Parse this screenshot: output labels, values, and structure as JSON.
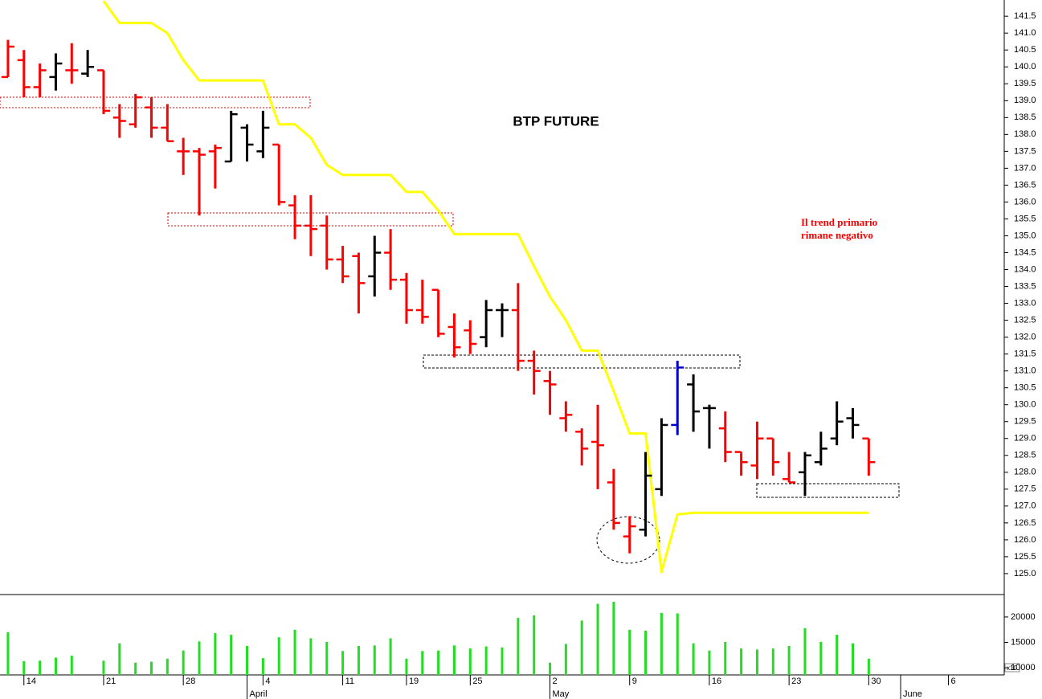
{
  "chart_data": [
    {
      "type": "ohlc",
      "title": "BTP  FUTURE",
      "annotation": [
        "Il trend primario",
        "rimane negativo"
      ],
      "annotation_color": "#ff0000",
      "xlim": [
        -0.5,
        62.5
      ],
      "xticks": [
        {
          "value": 1,
          "label": "14"
        },
        {
          "value": 6,
          "label": "21"
        },
        {
          "value": 11,
          "label": "28"
        },
        {
          "value": 16,
          "label": "4"
        },
        {
          "value": 21,
          "label": "11"
        },
        {
          "value": 25,
          "label": "19"
        },
        {
          "value": 29,
          "label": "25"
        },
        {
          "value": 34,
          "label": "2"
        },
        {
          "value": 39,
          "label": "9"
        },
        {
          "value": 44,
          "label": "16"
        },
        {
          "value": 49,
          "label": "23"
        },
        {
          "value": 54,
          "label": "30"
        },
        {
          "value": 59,
          "label": "6"
        }
      ],
      "month_ticks": [
        {
          "value": 15,
          "label": "April"
        },
        {
          "value": 34,
          "label": "May"
        },
        {
          "value": 56,
          "label": "June"
        }
      ],
      "ylim": [
        124.38,
        141.98
      ],
      "yticks": [
        {
          "value": 125,
          "label": "125.0"
        },
        125.5,
        {
          "value": 126,
          "label": "126.0"
        },
        126.5,
        {
          "value": 127,
          "label": "127.0"
        },
        127.5,
        {
          "value": 128,
          "label": "128.0"
        },
        128.5,
        {
          "value": 129,
          "label": "129.0"
        },
        129.5,
        {
          "value": 130,
          "label": "130.0"
        },
        130.5,
        {
          "value": 131,
          "label": "131.0"
        },
        131.5,
        {
          "value": 132,
          "label": "132.0"
        },
        132.5,
        {
          "value": 133,
          "label": "133.0"
        },
        133.5,
        {
          "value": 134,
          "label": "134.0"
        },
        134.5,
        {
          "value": 135,
          "label": "135.0"
        },
        135.5,
        {
          "value": 136,
          "label": "136.0"
        },
        136.5,
        {
          "value": 137,
          "label": "137.0"
        },
        137.5,
        {
          "value": 138,
          "label": "138.0"
        },
        138.5,
        {
          "value": 139,
          "label": "139.0"
        },
        139.5,
        {
          "value": 140,
          "label": "140.0"
        },
        140.5,
        {
          "value": 141,
          "label": "141.0"
        },
        141.5
      ],
      "open": [
        139.7,
        140.2,
        139.4,
        139.7,
        139.9,
        139.8,
        139.9,
        138.5,
        138.3,
        138.8,
        138.2,
        137.5,
        137.5,
        137.5,
        137.2,
        138.2,
        137.5,
        137.7,
        135.9,
        135.3,
        135.3,
        134.3,
        134.4,
        133.8,
        134.5,
        133.7,
        132.8,
        133.4,
        132.3,
        132.2,
        132.0,
        132.8,
        132.8,
        131.3,
        130.7,
        129.6,
        129.2,
        128.9,
        127.7,
        126.1,
        126.3,
        127.5,
        129.4,
        130.6,
        129.9,
        129.3,
        128.6,
        128.2,
        129.0,
        127.8,
        128.0,
        128.3,
        129.0,
        129.6,
        129.0
      ],
      "high": [
        140.8,
        140.5,
        140.1,
        140.4,
        140.7,
        140.5,
        139.9,
        138.9,
        139.2,
        139.1,
        138.9,
        137.9,
        137.6,
        137.7,
        138.7,
        138.3,
        138.7,
        137.7,
        136.2,
        136.2,
        135.6,
        134.7,
        134.5,
        135.0,
        135.2,
        133.9,
        133.7,
        133.4,
        132.7,
        132.5,
        133.1,
        133.0,
        133.6,
        131.6,
        131.0,
        130.1,
        129.3,
        130.0,
        128.1,
        126.7,
        128.6,
        129.6,
        131.3,
        130.9,
        130.0,
        129.8,
        128.6,
        129.5,
        129.0,
        128.6,
        128.6,
        129.2,
        130.1,
        129.9,
        129.0
      ],
      "low": [
        139.7,
        139.1,
        139.1,
        139.3,
        139.5,
        139.7,
        138.6,
        137.9,
        138.2,
        137.9,
        137.8,
        136.8,
        135.6,
        136.4,
        137.2,
        137.2,
        137.3,
        135.9,
        134.9,
        134.4,
        134.0,
        133.6,
        132.7,
        133.2,
        133.4,
        132.4,
        132.4,
        132.0,
        131.4,
        131.5,
        131.7,
        132.0,
        131.0,
        130.3,
        129.7,
        129.2,
        128.2,
        127.5,
        126.3,
        125.6,
        126.1,
        127.3,
        129.1,
        129.2,
        128.7,
        128.3,
        127.9,
        127.8,
        127.9,
        127.7,
        127.3,
        128.2,
        128.8,
        129.0,
        127.9
      ],
      "close": [
        140.6,
        139.4,
        139.9,
        140.1,
        139.9,
        140.0,
        138.7,
        138.4,
        139.1,
        138.2,
        137.8,
        137.5,
        137.4,
        137.6,
        138.6,
        137.7,
        138.2,
        136.0,
        135.3,
        135.2,
        134.3,
        133.8,
        133.6,
        134.5,
        133.7,
        132.8,
        132.6,
        132.1,
        131.7,
        131.8,
        132.8,
        132.8,
        131.3,
        131.0,
        130.6,
        129.7,
        128.7,
        128.8,
        126.5,
        126.4,
        127.9,
        129.4,
        131.1,
        129.8,
        129.9,
        128.6,
        128.3,
        129.0,
        128.3,
        127.7,
        128.5,
        128.7,
        129.5,
        129.4,
        128.3
      ],
      "colors": [
        "#ff0000",
        "#ff0000",
        "#ff0000",
        "#000000",
        "#ff0000",
        "#000000",
        "#ff0000",
        "#ff0000",
        "#ff0000",
        "#ff0000",
        "#ff0000",
        "#ff0000",
        "#ff0000",
        "#ff0000",
        "#000000",
        "#000000",
        "#000000",
        "#ff0000",
        "#ff0000",
        "#ff0000",
        "#ff0000",
        "#ff0000",
        "#ff0000",
        "#000000",
        "#ff0000",
        "#ff0000",
        "#ff0000",
        "#ff0000",
        "#ff0000",
        "#ff0000",
        "#000000",
        "#000000",
        "#ff0000",
        "#ff0000",
        "#ff0000",
        "#ff0000",
        "#ff0000",
        "#ff0000",
        "#ff0000",
        "#ff0000",
        "#000000",
        "#000000",
        "#0000cc",
        "#000000",
        "#000000",
        "#ff0000",
        "#ff0000",
        "#ff0000",
        "#ff0000",
        "#ff0000",
        "#000000",
        "#000000",
        "#000000",
        "#000000",
        "#ff0000"
      ],
      "stop_line": {
        "color": "#ffff00",
        "values": [
          null,
          null,
          null,
          null,
          null,
          null,
          141.95,
          141.3,
          141.3,
          141.3,
          141.0,
          140.2,
          139.6,
          139.6,
          139.6,
          139.6,
          139.6,
          138.3,
          138.3,
          137.9,
          137.1,
          136.8,
          136.8,
          136.8,
          136.8,
          136.3,
          136.3,
          135.75,
          135.05,
          135.05,
          135.05,
          135.05,
          135.05,
          134.1,
          133.2,
          132.5,
          131.6,
          131.6,
          130.4,
          129.15,
          129.15,
          125.05,
          126.75,
          126.8,
          126.8,
          126.8,
          126.8,
          126.8,
          126.8,
          126.8,
          126.8,
          126.8,
          126.8,
          126.8,
          126.8
        ]
      }
    },
    {
      "type": "bar",
      "color": "#22dd22",
      "unit_note": "x10",
      "xlim": [
        -0.5,
        62.5
      ],
      "ylim": [
        8600,
        24100
      ],
      "yticks": [
        10000,
        15000,
        20000
      ],
      "values": [
        17000,
        11300,
        11400,
        12000,
        12400,
        null,
        11400,
        14800,
        11000,
        11200,
        11800,
        13400,
        15200,
        16800,
        16500,
        14300,
        11900,
        16000,
        17500,
        15800,
        15100,
        13300,
        14300,
        14400,
        15800,
        11800,
        13300,
        13400,
        14400,
        13800,
        14200,
        14000,
        19800,
        20300,
        11000,
        14700,
        19300,
        22600,
        23000,
        17500,
        17300,
        20800,
        20700,
        14800,
        13400,
        15100,
        13800,
        13600,
        13800,
        14300,
        17800,
        15100,
        16500,
        14800,
        11800
      ]
    }
  ]
}
